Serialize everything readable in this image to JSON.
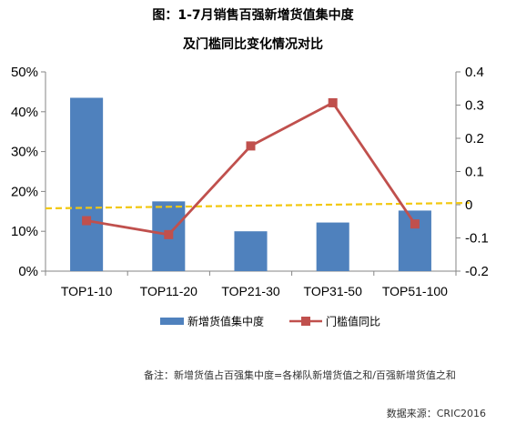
{
  "chart_data": {
    "type": "bar",
    "title": "图：1-7月销售百强新增货值集中度",
    "subtitle": "及门槛同比变化情况对比",
    "categories": [
      "TOP1-10",
      "TOP11-20",
      "TOP21-30",
      "TOP31-50",
      "TOP51-100"
    ],
    "series": [
      {
        "name": "新增货值集中度",
        "type": "bar",
        "axis": "left",
        "color": "#4f81bd",
        "values": [
          0.435,
          0.175,
          0.1,
          0.122,
          0.152
        ]
      },
      {
        "name": "门槛值同比",
        "type": "line",
        "axis": "right",
        "color": "#c0504d",
        "values": [
          -0.048,
          -0.09,
          0.177,
          0.307,
          -0.058
        ]
      }
    ],
    "y_left": {
      "ylim": [
        0,
        0.5
      ],
      "ticks": [
        "0%",
        "10%",
        "20%",
        "30%",
        "40%",
        "50%"
      ]
    },
    "y_right": {
      "ylim": [
        -0.2,
        0.4
      ],
      "ticks": [
        "-0.2",
        "-0.1",
        "0",
        "0.1",
        "0.2",
        "0.3",
        "0.4"
      ]
    },
    "reference_line": {
      "axis": "right",
      "value": 0,
      "color": "#f2c811",
      "style": "dashed"
    },
    "grid": false,
    "legend": "bottom"
  },
  "notes": {
    "formula": "备注：新增货值占百强集中度=各梯队新增货值之和/百强新增货值之和",
    "source": "数据来源：CRIC2016"
  }
}
